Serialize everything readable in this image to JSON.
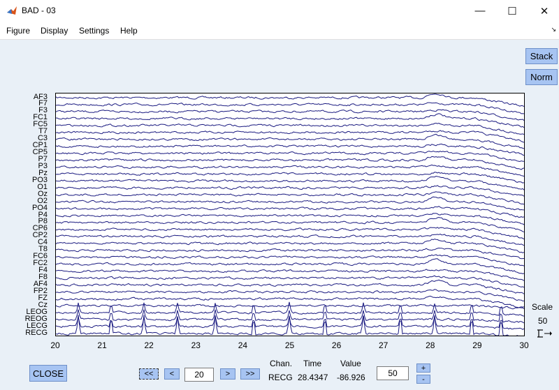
{
  "window": {
    "title": "BAD - 03",
    "icon": "matlab-icon",
    "minimize": "—",
    "maximize": "☐",
    "close": "✕"
  },
  "menubar": {
    "items": [
      "Figure",
      "Display",
      "Settings",
      "Help"
    ],
    "dock": "↘"
  },
  "buttons": {
    "stack": "Stack",
    "norm": "Norm",
    "close": "CLOSE",
    "first": "<<",
    "prev": "<",
    "next": ">",
    "last": ">>",
    "plus": "+",
    "minus": "-"
  },
  "channels": [
    "AF3",
    "F7",
    "F3",
    "FC1",
    "FC5",
    "T7",
    "C3",
    "CP1",
    "CP5",
    "P7",
    "P3",
    "Pz",
    "PO3",
    "O1",
    "Oz",
    "O2",
    "PO4",
    "P4",
    "P8",
    "CP6",
    "CP2",
    "C4",
    "T8",
    "FC6",
    "FC2",
    "F4",
    "F8",
    "AF4",
    "FP2",
    "FZ",
    "Cz",
    "LEOG",
    "REOG",
    "LECG",
    "RECG"
  ],
  "xticks": [
    "20",
    "21",
    "22",
    "23",
    "24",
    "25",
    "26",
    "27",
    "28",
    "29",
    "30"
  ],
  "scale": {
    "label": "Scale",
    "value": "50"
  },
  "position": {
    "value": "20"
  },
  "spacing": {
    "value": "50"
  },
  "readout": {
    "chan_header": "Chan.",
    "time_header": "Time",
    "value_header": "Value",
    "chan": "RECG",
    "time": "28.4347",
    "value": "-86.926"
  },
  "colors": {
    "trace": "#1a1a80",
    "button": "#a7c4f2",
    "figure_bg": "#e9f0f7"
  }
}
